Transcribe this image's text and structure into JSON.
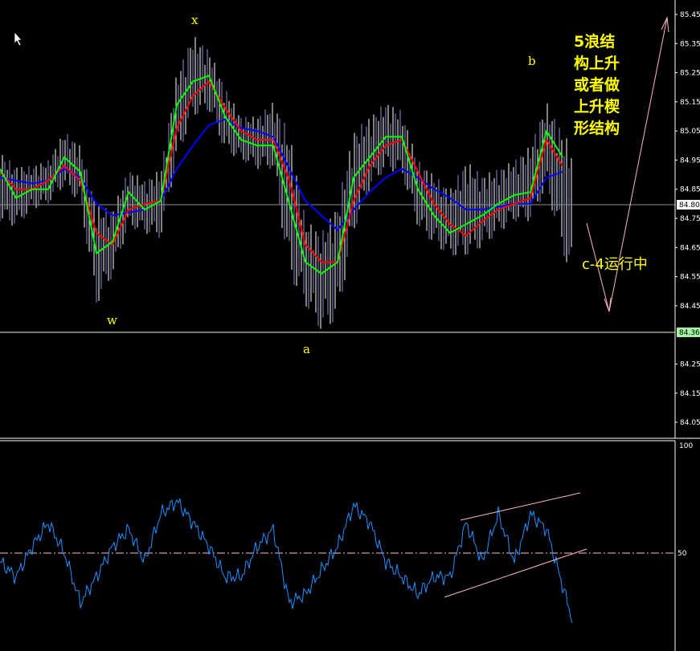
{
  "chart_data": [
    {
      "type": "line",
      "panel": "price",
      "y_ticks": [
        "85.45",
        "85.35",
        "85.25",
        "85.15",
        "85.05",
        "84.95",
        "84.85",
        "84.75",
        "84.65",
        "84.55",
        "84.45",
        "84.25",
        "84.15",
        "84.05"
      ],
      "ylim": [
        84.0,
        85.47
      ],
      "current_price_label": "84.80",
      "support_label": "84.36",
      "current_price": 84.8,
      "support_price": 84.36,
      "grid": false,
      "series": [
        {
          "color": "#00ff00",
          "values": [
            84.92,
            84.82,
            84.85,
            84.85,
            84.96,
            84.91,
            84.63,
            84.67,
            84.84,
            84.78,
            84.81,
            85.14,
            85.22,
            85.24,
            85.1,
            85.02,
            85.0,
            85.0,
            84.8,
            84.6,
            84.56,
            84.6,
            84.89,
            84.96,
            85.03,
            85.03,
            84.85,
            84.76,
            84.7,
            84.73,
            84.76,
            84.8,
            84.83,
            84.84,
            85.05,
            84.96
          ]
        },
        {
          "color": "#ff0000",
          "values": [
            84.91,
            84.85,
            84.85,
            84.88,
            84.93,
            84.88,
            84.7,
            84.66,
            84.78,
            84.8,
            84.81,
            85.06,
            85.17,
            85.22,
            85.13,
            85.05,
            85.02,
            85.02,
            84.88,
            84.66,
            84.6,
            84.6,
            84.81,
            84.93,
            85.0,
            85.02,
            84.91,
            84.8,
            84.73,
            84.69,
            84.74,
            84.78,
            84.8,
            84.82,
            85.02,
            84.93
          ]
        },
        {
          "color": "#0000ff",
          "values": [
            84.89,
            84.88,
            84.87,
            84.88,
            84.92,
            84.89,
            84.8,
            84.76,
            84.77,
            84.78,
            84.81,
            84.92,
            85.0,
            85.07,
            85.09,
            85.06,
            85.05,
            85.03,
            84.92,
            84.81,
            84.76,
            84.71,
            84.78,
            84.84,
            84.89,
            84.92,
            84.89,
            84.85,
            84.82,
            84.78,
            84.78,
            84.79,
            84.8,
            84.8,
            84.89,
            84.91
          ]
        }
      ],
      "highs": [
        84.98,
        84.93,
        84.93,
        84.95,
        85.05,
        85.0,
        84.8,
        84.78,
        84.92,
        84.88,
        84.92,
        85.25,
        85.38,
        85.33,
        85.2,
        85.1,
        85.1,
        85.15,
        85.05,
        84.75,
        84.7,
        84.8,
        85.05,
        85.1,
        85.15,
        85.12,
        84.95,
        84.9,
        84.85,
        84.95,
        84.9,
        84.92,
        84.95,
        85.0,
        85.15,
        85.05
      ],
      "lows": [
        84.74,
        84.72,
        84.78,
        84.8,
        84.86,
        84.8,
        84.45,
        84.55,
        84.72,
        84.7,
        84.68,
        84.95,
        85.1,
        85.12,
        84.98,
        84.95,
        84.92,
        84.92,
        84.55,
        84.45,
        84.36,
        84.4,
        84.7,
        84.85,
        84.92,
        84.9,
        84.72,
        84.66,
        84.62,
        84.62,
        84.65,
        84.7,
        84.74,
        84.74,
        84.85,
        84.64
      ],
      "bar_color": "#ffffff",
      "wave_labels": {
        "x": "x",
        "w": "w",
        "a": "a",
        "b": "b"
      },
      "annotation_lines": [
        "5浪结",
        "构上升",
        "或者做",
        "上升楔",
        "形结构"
      ],
      "annotation_c": "c-4运行中",
      "annotation_color": "#ffff00",
      "projection_color": "#ffb6c1"
    },
    {
      "type": "line",
      "panel": "oscillator",
      "y_ticks": [
        "100",
        "50"
      ],
      "ylim": [
        0,
        100
      ],
      "level": 50,
      "series": [
        {
          "color": "#1e90ff",
          "values": [
            46,
            39,
            53,
            64,
            50,
            27,
            39,
            53,
            61,
            46,
            68,
            74,
            64,
            53,
            39,
            39,
            53,
            61,
            27,
            31,
            42,
            53,
            72,
            64,
            46,
            39,
            31,
            39,
            39,
            64,
            46,
            68,
            46,
            68,
            61,
            35
          ]
        }
      ],
      "channel_color": "#ffb6c1"
    }
  ]
}
